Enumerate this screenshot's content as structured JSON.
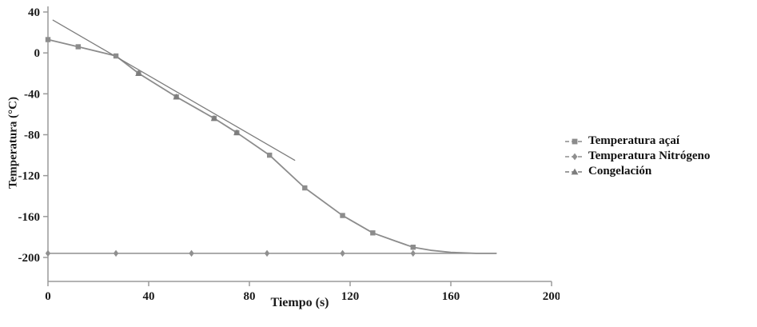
{
  "chart_data": {
    "type": "line",
    "title": "",
    "xlabel": "Tiempo (s)",
    "ylabel": "Temperatura (°C)",
    "xlim": [
      0,
      200
    ],
    "ylim": [
      -200,
      40
    ],
    "x_ticks": [
      0,
      40,
      80,
      120,
      160,
      200
    ],
    "y_ticks": [
      40,
      0,
      -40,
      -80,
      -120,
      -160,
      -200
    ],
    "grid": false,
    "legend_position": "right",
    "axis_color": "#9a9a9a",
    "series": [
      {
        "name": "Temperatura açaí",
        "marker": "square",
        "color": "#8c8c8c",
        "line_width": 1.8,
        "line": [
          [
            0,
            13
          ],
          [
            12,
            6
          ],
          [
            27,
            -3
          ],
          [
            36,
            -20
          ],
          [
            51,
            -43
          ],
          [
            66,
            -64
          ],
          [
            75,
            -78
          ],
          [
            88,
            -100
          ],
          [
            102,
            -132
          ],
          [
            117,
            -159
          ],
          [
            129,
            -176
          ],
          [
            138,
            -184
          ],
          [
            145,
            -190
          ],
          [
            152,
            -193
          ],
          [
            160,
            -195
          ],
          [
            170,
            -196
          ],
          [
            178,
            -196
          ]
        ],
        "markers": [
          [
            0,
            13
          ],
          [
            12,
            6
          ],
          [
            27,
            -3
          ],
          [
            36,
            -20
          ],
          [
            51,
            -43
          ],
          [
            66,
            -64
          ],
          [
            75,
            -78
          ],
          [
            88,
            -100
          ],
          [
            102,
            -132
          ],
          [
            117,
            -159
          ],
          [
            129,
            -176
          ],
          [
            145,
            -190
          ]
        ]
      },
      {
        "name": "Temperatura Nitrógeno",
        "marker": "diamond",
        "color": "#8f8f8f",
        "line_width": 1.5,
        "line": [
          [
            0,
            -196
          ],
          [
            178,
            -196
          ]
        ],
        "markers": [
          [
            0,
            -196
          ],
          [
            27,
            -196
          ],
          [
            57,
            -196
          ],
          [
            87,
            -196
          ],
          [
            117,
            -196
          ],
          [
            145,
            -196
          ]
        ]
      },
      {
        "name": "Congelación",
        "marker": "triangle",
        "color": "#7d7d7d",
        "line_width": 1.3,
        "line": [
          [
            2,
            32
          ],
          [
            98,
            -105
          ]
        ],
        "markers": [
          [
            36,
            -20
          ],
          [
            51,
            -43
          ],
          [
            66,
            -64
          ],
          [
            75,
            -78
          ]
        ]
      }
    ]
  }
}
